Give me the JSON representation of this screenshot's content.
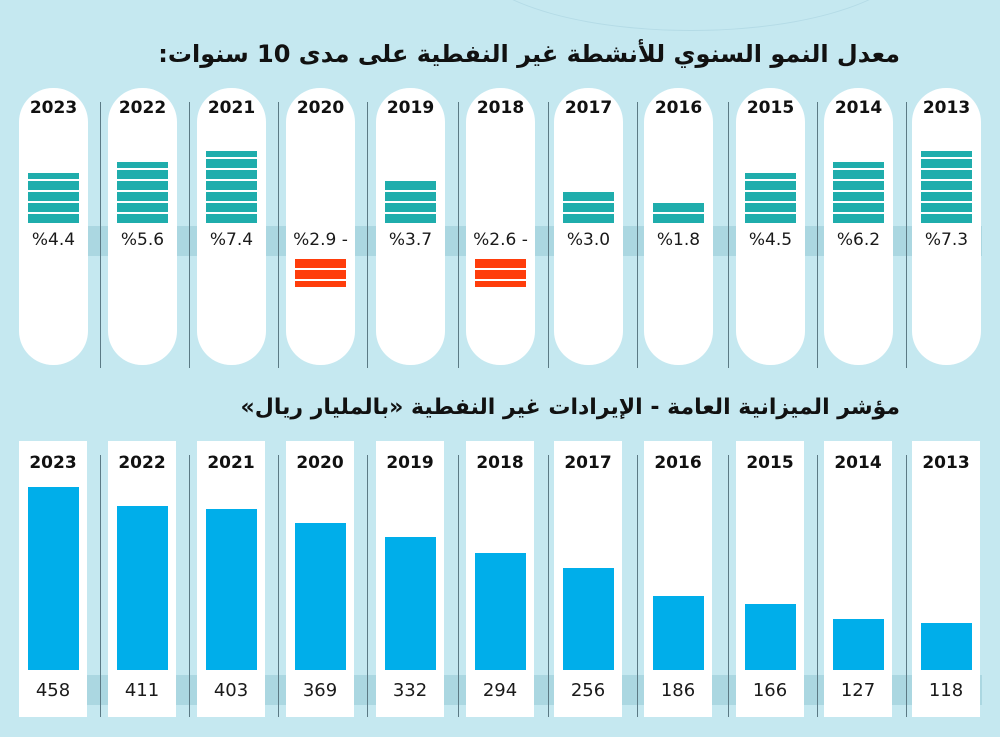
{
  "chart_data": [
    {
      "type": "bar",
      "title": "معدل النمو السنوي للأنشطة غير النفطية على مدى 10 سنوات:",
      "categories": [
        "2023",
        "2022",
        "2021",
        "2020",
        "2019",
        "2018",
        "2017",
        "2016",
        "2015",
        "2014",
        "2013"
      ],
      "values": [
        4.4,
        5.6,
        7.4,
        -2.9,
        3.7,
        -2.6,
        3.0,
        1.8,
        4.5,
        6.2,
        7.3
      ],
      "labels": [
        "%4.4",
        "%5.6",
        "%7.4",
        "%2.9 -",
        "%3.7",
        "%2.6 -",
        "%3.0",
        "%1.8",
        "%4.5",
        "%6.2",
        "%7.3"
      ],
      "stripes": [
        5,
        6,
        7,
        3,
        4,
        3,
        3,
        2,
        5,
        6,
        7
      ],
      "unit": "%",
      "xlabel": "",
      "ylabel": "",
      "grid": false,
      "colors": {
        "positive": "#1fadac",
        "negative": "#ff3d0b"
      }
    },
    {
      "type": "bar",
      "title": "مؤشر الميزانية العامة - الإيرادات غير النفطية «بالمليار ريال»",
      "categories": [
        "2023",
        "2022",
        "2021",
        "2020",
        "2019",
        "2018",
        "2017",
        "2016",
        "2015",
        "2014",
        "2013"
      ],
      "values": [
        458,
        411,
        403,
        369,
        332,
        294,
        256,
        186,
        166,
        127,
        118
      ],
      "labels": [
        "458",
        "411",
        "403",
        "369",
        "332",
        "294",
        "256",
        "186",
        "166",
        "127",
        "118"
      ],
      "unit": "billion riyals",
      "xlabel": "",
      "ylabel": "",
      "grid": false,
      "colors": {
        "bar": "#00aeea"
      }
    }
  ],
  "colors": {
    "background": "#c5e8f0",
    "column": "#ffffff",
    "band": "#96c8d6"
  }
}
